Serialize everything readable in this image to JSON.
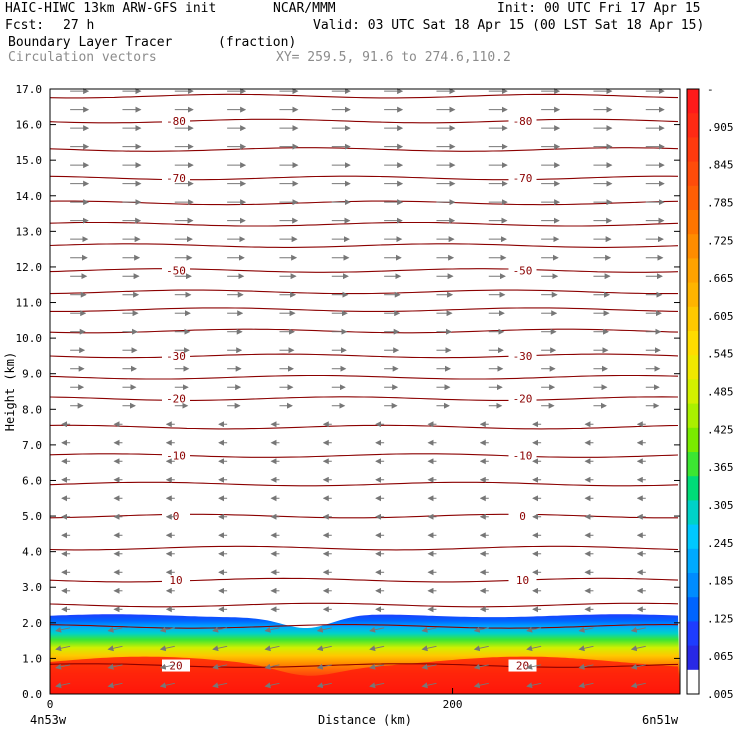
{
  "header": {
    "model": "HAIC-HIWC 13km ARW-GFS init",
    "org": "NCAR/MMM",
    "init": "Init: 00 UTC Fri 17 Apr 15",
    "fcst_label": "Fcst:",
    "fcst_value": "27 h",
    "valid": "Valid: 03 UTC Sat 18 Apr 15 (00 LST Sat 18 Apr 15)",
    "field": "Boundary Layer Tracer",
    "field_units": "(fraction)",
    "overlay": "Circulation vectors",
    "xy": "XY= 259.5, 91.6 to 274.6,110.2"
  },
  "chart_data": {
    "type": "heatmap",
    "title": "Boundary Layer Tracer",
    "xlabel": "Distance (km)",
    "ylabel": "Height (km)",
    "xlim": [
      0,
      313
    ],
    "ylim": [
      0,
      17
    ],
    "x_ticks": [
      0,
      200
    ],
    "x_tick_labels": [
      "0",
      "200"
    ],
    "x_left_label": "4n53w",
    "x_right_label": "6n51w",
    "y_ticks": [
      "0.0",
      "1.0",
      "2.0",
      "3.0",
      "4.0",
      "5.0",
      "6.0",
      "7.0",
      "8.0",
      "9.0",
      "10.0",
      "11.0",
      "12.0",
      "13.0",
      "14.0",
      "15.0",
      "16.0",
      "17.0"
    ],
    "colorbar_labels": [
      "-",
      ".905",
      ".845",
      ".785",
      ".725",
      ".665",
      ".605",
      ".545",
      ".485",
      ".425",
      ".365",
      ".305",
      ".245",
      ".185",
      ".125",
      ".065",
      ".005"
    ],
    "colorbar_colors": [
      "#ff1a1a",
      "#ff2a14",
      "#ff3a0e",
      "#ff4c0a",
      "#ff5e05",
      "#ff7500",
      "#ff8c00",
      "#ffa200",
      "#ffb400",
      "#ffc800",
      "#ffdc00",
      "#f0e800",
      "#d2f000",
      "#aaf000",
      "#7aeb00",
      "#3ce632",
      "#00dc78",
      "#00d2c8",
      "#00c8ff",
      "#00aaff",
      "#008cff",
      "#0064ff",
      "#1e3cff",
      "#2828e6",
      "#ffffff"
    ],
    "temperature_contours": [
      {
        "label": "-80",
        "height_km": 16.1
      },
      {
        "label": "-70",
        "height_km": 14.5
      },
      {
        "label": "-50",
        "height_km": 11.9
      },
      {
        "label": "-30",
        "height_km": 9.5
      },
      {
        "label": "-20",
        "height_km": 8.3
      },
      {
        "label": "-10",
        "height_km": 6.7
      },
      {
        "label": "0",
        "height_km": 5.0
      },
      {
        "label": "10",
        "height_km": 3.2
      },
      {
        "label": "20",
        "height_km": 0.8
      }
    ],
    "wind_direction_upper": "eastward",
    "wind_direction_lower": "westward"
  }
}
